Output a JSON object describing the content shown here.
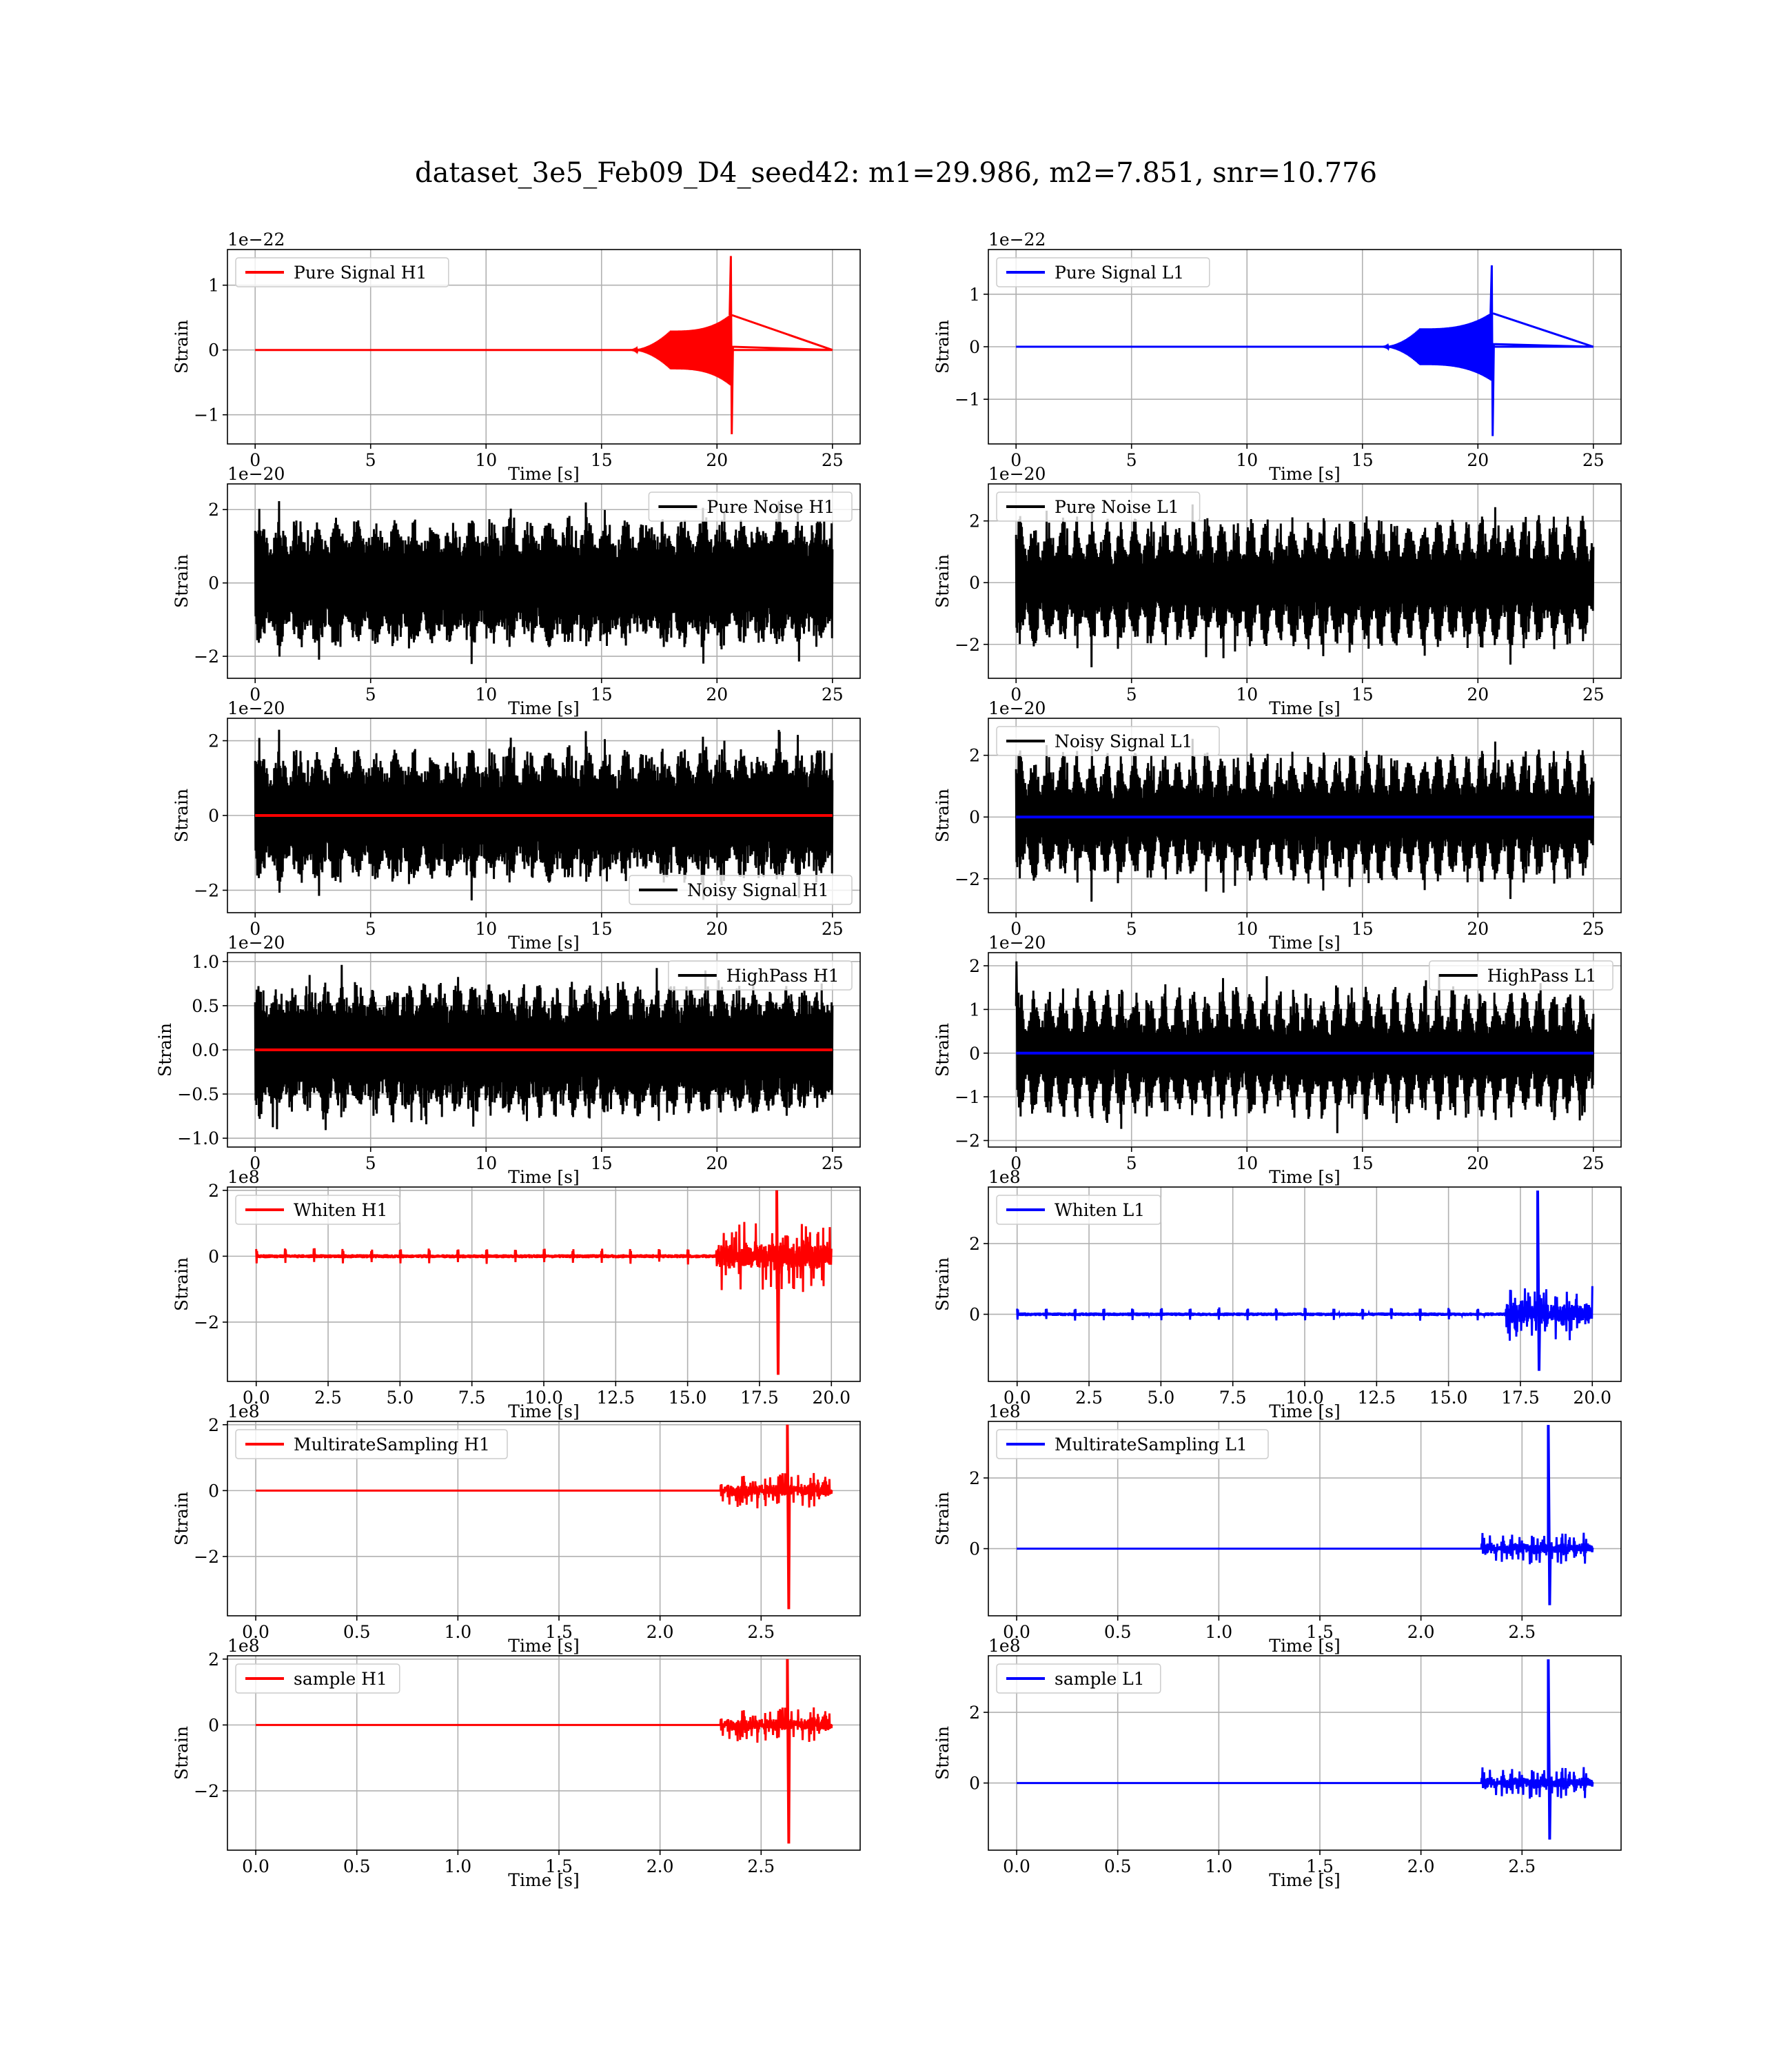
{
  "figure": {
    "title": "dataset_3e5_Feb09_D4_seed42: m1=29.986, m2=7.851, snr=10.776"
  },
  "chart_data": [
    {
      "id": "pure-signal-h1",
      "type": "line",
      "legend": "Pure Signal H1",
      "legend_loc": "upper-left",
      "ylabel": "Strain",
      "xlabel": "Time [s]",
      "exponent": "1e−22",
      "xlim": [
        -1.2,
        26.2
      ],
      "ylim": [
        -1.45,
        1.55
      ],
      "xticks": [
        0,
        5,
        10,
        15,
        20,
        25
      ],
      "xtick_labels": [
        "0",
        "5",
        "10",
        "15",
        "20",
        "25"
      ],
      "yticks": [
        -1,
        0,
        1
      ],
      "ytick_labels": [
        "−1",
        "0",
        "1"
      ],
      "series": [
        {
          "name": "Pure Signal H1",
          "color": "#ff0000",
          "shape": "chirp",
          "x_range": [
            0,
            25
          ],
          "values": {
            "rise_start": 16.2,
            "plateau_start": 18.0,
            "merger": 20.6,
            "plateau_amp": 0.3,
            "pre_peak_amp": 0.55,
            "peak_max": 1.45,
            "peak_min": -1.3
          }
        }
      ]
    },
    {
      "id": "pure-signal-l1",
      "type": "line",
      "legend": "Pure Signal L1",
      "legend_loc": "upper-left",
      "ylabel": "Strain",
      "xlabel": "Time [s]",
      "exponent": "1e−22",
      "xlim": [
        -1.2,
        26.2
      ],
      "ylim": [
        -1.85,
        1.85
      ],
      "xticks": [
        0,
        5,
        10,
        15,
        20,
        25
      ],
      "xtick_labels": [
        "0",
        "5",
        "10",
        "15",
        "20",
        "25"
      ],
      "yticks": [
        -1,
        0,
        1
      ],
      "ytick_labels": [
        "−1",
        "0",
        "1"
      ],
      "series": [
        {
          "name": "Pure Signal L1",
          "color": "#0000ff",
          "shape": "chirp",
          "x_range": [
            0,
            25
          ],
          "values": {
            "rise_start": 15.8,
            "plateau_start": 17.5,
            "merger": 20.6,
            "plateau_amp": 0.35,
            "pre_peak_amp": 0.65,
            "peak_max": 1.55,
            "peak_min": -1.7
          }
        }
      ]
    },
    {
      "id": "pure-noise-h1",
      "type": "line",
      "legend": "Pure Noise H1",
      "legend_loc": "upper-right",
      "ylabel": "Strain",
      "xlabel": "Time [s]",
      "exponent": "1e−20",
      "xlim": [
        -1.2,
        26.2
      ],
      "ylim": [
        -2.6,
        2.7
      ],
      "xticks": [
        0,
        5,
        10,
        15,
        20,
        25
      ],
      "xtick_labels": [
        "0",
        "5",
        "10",
        "15",
        "20",
        "25"
      ],
      "yticks": [
        -2,
        0,
        2
      ],
      "ytick_labels": [
        "−2",
        "0",
        "2"
      ],
      "series": [
        {
          "name": "Pure Noise H1",
          "color": "#000000",
          "shape": "noise",
          "x_range": [
            0,
            25
          ],
          "values": {
            "amp": 1.8,
            "seed": 11,
            "modulation": 0.35,
            "mod_freq": 1.2
          }
        }
      ]
    },
    {
      "id": "pure-noise-l1",
      "type": "line",
      "legend": "Pure Noise L1",
      "legend_loc": "upper-left",
      "ylabel": "Strain",
      "xlabel": "Time [s]",
      "exponent": "1e−20",
      "xlim": [
        -1.2,
        26.2
      ],
      "ylim": [
        -3.1,
        3.2
      ],
      "xticks": [
        0,
        5,
        10,
        15,
        20,
        25
      ],
      "xtick_labels": [
        "0",
        "5",
        "10",
        "15",
        "20",
        "25"
      ],
      "yticks": [
        -2,
        0,
        2
      ],
      "ytick_labels": [
        "−2",
        "0",
        "2"
      ],
      "series": [
        {
          "name": "Pure Noise L1",
          "color": "#000000",
          "shape": "noise",
          "x_range": [
            0,
            25
          ],
          "values": {
            "amp": 2.2,
            "seed": 23,
            "modulation": 0.55,
            "mod_freq": 1.6
          }
        }
      ]
    },
    {
      "id": "noisy-signal-h1",
      "type": "line",
      "legend": "Noisy Signal H1",
      "legend_loc": "lower-right",
      "ylabel": "Strain",
      "xlabel": "Time [s]",
      "exponent": "1e−20",
      "xlim": [
        -1.2,
        26.2
      ],
      "ylim": [
        -2.6,
        2.6
      ],
      "xticks": [
        0,
        5,
        10,
        15,
        20,
        25
      ],
      "xtick_labels": [
        "0",
        "5",
        "10",
        "15",
        "20",
        "25"
      ],
      "yticks": [
        -2,
        0,
        2
      ],
      "ytick_labels": [
        "−2",
        "0",
        "2"
      ],
      "series": [
        {
          "name": "Noisy Signal H1",
          "color": "#000000",
          "shape": "noise",
          "x_range": [
            0,
            25
          ],
          "values": {
            "amp": 1.85,
            "seed": 11,
            "modulation": 0.35,
            "mod_freq": 1.2
          }
        },
        {
          "name": "",
          "color": "#ff0000",
          "shape": "flat",
          "x_range": [
            0,
            25
          ],
          "values": {
            "level": 0
          }
        }
      ]
    },
    {
      "id": "noisy-signal-l1",
      "type": "line",
      "legend": "Noisy Signal L1",
      "legend_loc": "upper-left",
      "ylabel": "Strain",
      "xlabel": "Time [s]",
      "exponent": "1e−20",
      "xlim": [
        -1.2,
        26.2
      ],
      "ylim": [
        -3.1,
        3.2
      ],
      "xticks": [
        0,
        5,
        10,
        15,
        20,
        25
      ],
      "xtick_labels": [
        "0",
        "5",
        "10",
        "15",
        "20",
        "25"
      ],
      "yticks": [
        -2,
        0,
        2
      ],
      "ytick_labels": [
        "−2",
        "0",
        "2"
      ],
      "series": [
        {
          "name": "Noisy Signal L1",
          "color": "#000000",
          "shape": "noise",
          "x_range": [
            0,
            25
          ],
          "values": {
            "amp": 2.2,
            "seed": 23,
            "modulation": 0.55,
            "mod_freq": 1.6
          }
        },
        {
          "name": "",
          "color": "#0000ff",
          "shape": "flat",
          "x_range": [
            0,
            25
          ],
          "values": {
            "level": 0
          }
        }
      ]
    },
    {
      "id": "highpass-h1",
      "type": "line",
      "legend": "HighPass H1",
      "legend_loc": "upper-right",
      "ylabel": "Strain",
      "xlabel": "Time [s]",
      "exponent": "1e−20",
      "xlim": [
        -1.2,
        26.2
      ],
      "ylim": [
        -1.1,
        1.1
      ],
      "xticks": [
        0,
        5,
        10,
        15,
        20,
        25
      ],
      "xtick_labels": [
        "0",
        "5",
        "10",
        "15",
        "20",
        "25"
      ],
      "yticks": [
        -1.0,
        -0.5,
        0.0,
        0.5,
        1.0
      ],
      "ytick_labels": [
        "−1.0",
        "−0.5",
        "0.0",
        "0.5",
        "1.0"
      ],
      "series": [
        {
          "name": "HighPass H1",
          "color": "#000000",
          "shape": "noise",
          "x_range": [
            0,
            25
          ],
          "values": {
            "amp": 0.78,
            "seed": 37,
            "modulation": 0.35,
            "mod_freq": 1.4
          }
        },
        {
          "name": "",
          "color": "#ff0000",
          "shape": "flat",
          "x_range": [
            0,
            25
          ],
          "values": {
            "level": 0
          }
        }
      ]
    },
    {
      "id": "highpass-l1",
      "type": "line",
      "legend": "HighPass L1",
      "legend_loc": "upper-right",
      "ylabel": "Strain",
      "xlabel": "Time [s]",
      "exponent": "1e−20",
      "xlim": [
        -1.2,
        26.2
      ],
      "ylim": [
        -2.15,
        2.3
      ],
      "xticks": [
        0,
        5,
        10,
        15,
        20,
        25
      ],
      "xtick_labels": [
        "0",
        "5",
        "10",
        "15",
        "20",
        "25"
      ],
      "yticks": [
        -2,
        -1,
        0,
        1,
        2
      ],
      "ytick_labels": [
        "−2",
        "−1",
        "0",
        "1",
        "2"
      ],
      "series": [
        {
          "name": "HighPass L1",
          "color": "#000000",
          "shape": "noise",
          "x_range": [
            0,
            25
          ],
          "values": {
            "amp": 1.55,
            "seed": 41,
            "modulation": 0.6,
            "mod_freq": 1.6,
            "start_spike": 2.1
          }
        },
        {
          "name": "",
          "color": "#0000ff",
          "shape": "flat",
          "x_range": [
            0,
            25
          ],
          "values": {
            "level": 0
          }
        }
      ]
    },
    {
      "id": "whiten-h1",
      "type": "line",
      "legend": "Whiten H1",
      "legend_loc": "upper-left",
      "ylabel": "Strain",
      "xlabel": "Time [s]",
      "exponent": "1e8",
      "xlim": [
        -1.0,
        21.0
      ],
      "ylim": [
        -3.8,
        2.1
      ],
      "xticks": [
        0,
        2.5,
        5,
        7.5,
        10,
        12.5,
        15,
        17.5,
        20
      ],
      "xtick_labels": [
        "0.0",
        "2.5",
        "5.0",
        "7.5",
        "10.0",
        "12.5",
        "15.0",
        "17.5",
        "20.0"
      ],
      "yticks": [
        -2,
        0,
        2
      ],
      "ytick_labels": [
        "−2",
        "0",
        "2"
      ],
      "series": [
        {
          "name": "Whiten H1",
          "color": "#ff0000",
          "shape": "bursts",
          "x_range": [
            0,
            20
          ],
          "values": {
            "base_amp": 0.06,
            "burst_amp": 0.2,
            "spacing": 1.0,
            "loud_start": 16.0,
            "loud_amp": 0.55,
            "peak_x": 18.1,
            "peak_max": 2.0,
            "peak_min": -3.6,
            "seed": 5
          }
        }
      ]
    },
    {
      "id": "whiten-l1",
      "type": "line",
      "legend": "Whiten L1",
      "legend_loc": "upper-left",
      "ylabel": "Strain",
      "xlabel": "Time [s]",
      "exponent": "1e8",
      "xlim": [
        -1.0,
        21.0
      ],
      "ylim": [
        -1.9,
        3.6
      ],
      "xticks": [
        0,
        2.5,
        5,
        7.5,
        10,
        12.5,
        15,
        17.5,
        20
      ],
      "xtick_labels": [
        "0.0",
        "2.5",
        "5.0",
        "7.5",
        "10.0",
        "12.5",
        "15.0",
        "17.5",
        "20.0"
      ],
      "yticks": [
        0,
        2
      ],
      "ytick_labels": [
        "0",
        "2"
      ],
      "series": [
        {
          "name": "Whiten L1",
          "color": "#0000ff",
          "shape": "bursts",
          "x_range": [
            0,
            20
          ],
          "values": {
            "base_amp": 0.05,
            "burst_amp": 0.15,
            "spacing": 1.0,
            "loud_start": 17.0,
            "loud_amp": 0.4,
            "peak_x": 18.1,
            "peak_max": 3.5,
            "peak_min": -1.6,
            "seed": 9
          }
        }
      ]
    },
    {
      "id": "multirate-h1",
      "type": "line",
      "legend": "MultirateSampling H1",
      "legend_loc": "upper-left",
      "ylabel": "Strain",
      "xlabel": "Time [s]",
      "exponent": "1e8",
      "xlim": [
        -0.14,
        2.99
      ],
      "ylim": [
        -3.8,
        2.1
      ],
      "xticks": [
        0,
        0.5,
        1.0,
        1.5,
        2.0,
        2.5
      ],
      "xtick_labels": [
        "0.0",
        "0.5",
        "1.0",
        "1.5",
        "2.0",
        "2.5"
      ],
      "yticks": [
        -2,
        0,
        2
      ],
      "ytick_labels": [
        "−2",
        "0",
        "2"
      ],
      "series": [
        {
          "name": "MultirateSampling H1",
          "color": "#ff0000",
          "shape": "bursts",
          "x_range": [
            0,
            2.85
          ],
          "values": {
            "base_amp": 0.0,
            "burst_amp": 0.0,
            "spacing": 1.0,
            "loud_start": 2.3,
            "loud_amp": 0.3,
            "peak_x": 2.63,
            "peak_max": 2.0,
            "peak_min": -3.6,
            "seed": 13
          }
        }
      ]
    },
    {
      "id": "multirate-l1",
      "type": "line",
      "legend": "MultirateSampling L1",
      "legend_loc": "upper-left",
      "ylabel": "Strain",
      "xlabel": "Time [s]",
      "exponent": "1e8",
      "xlim": [
        -0.14,
        2.99
      ],
      "ylim": [
        -1.9,
        3.6
      ],
      "xticks": [
        0,
        0.5,
        1.0,
        1.5,
        2.0,
        2.5
      ],
      "xtick_labels": [
        "0.0",
        "0.5",
        "1.0",
        "1.5",
        "2.0",
        "2.5"
      ],
      "yticks": [
        0,
        2
      ],
      "ytick_labels": [
        "0",
        "2"
      ],
      "series": [
        {
          "name": "MultirateSampling L1",
          "color": "#0000ff",
          "shape": "bursts",
          "x_range": [
            0,
            2.85
          ],
          "values": {
            "base_amp": 0.0,
            "burst_amp": 0.0,
            "spacing": 1.0,
            "loud_start": 2.3,
            "loud_amp": 0.25,
            "peak_x": 2.63,
            "peak_max": 3.5,
            "peak_min": -1.6,
            "seed": 17
          }
        }
      ]
    },
    {
      "id": "sample-h1",
      "type": "line",
      "legend": "sample H1",
      "legend_loc": "upper-left",
      "ylabel": "Strain",
      "xlabel": "Time [s]",
      "exponent": "1e8",
      "xlim": [
        -0.14,
        2.99
      ],
      "ylim": [
        -3.8,
        2.1
      ],
      "xticks": [
        0,
        0.5,
        1.0,
        1.5,
        2.0,
        2.5
      ],
      "xtick_labels": [
        "0.0",
        "0.5",
        "1.0",
        "1.5",
        "2.0",
        "2.5"
      ],
      "yticks": [
        -2,
        0,
        2
      ],
      "ytick_labels": [
        "−2",
        "0",
        "2"
      ],
      "series": [
        {
          "name": "sample H1",
          "color": "#ff0000",
          "shape": "bursts",
          "x_range": [
            0,
            2.85
          ],
          "values": {
            "base_amp": 0.0,
            "burst_amp": 0.0,
            "spacing": 1.0,
            "loud_start": 2.3,
            "loud_amp": 0.3,
            "peak_x": 2.63,
            "peak_max": 2.0,
            "peak_min": -3.6,
            "seed": 13
          }
        }
      ]
    },
    {
      "id": "sample-l1",
      "type": "line",
      "legend": "sample L1",
      "legend_loc": "upper-left",
      "ylabel": "Strain",
      "xlabel": "Time [s]",
      "exponent": "1e8",
      "xlim": [
        -0.14,
        2.99
      ],
      "ylim": [
        -1.9,
        3.6
      ],
      "xticks": [
        0,
        0.5,
        1.0,
        1.5,
        2.0,
        2.5
      ],
      "xtick_labels": [
        "0.0",
        "0.5",
        "1.0",
        "1.5",
        "2.0",
        "2.5"
      ],
      "yticks": [
        0,
        2
      ],
      "ytick_labels": [
        "0",
        "2"
      ],
      "series": [
        {
          "name": "sample L1",
          "color": "#0000ff",
          "shape": "bursts",
          "x_range": [
            0,
            2.85
          ],
          "values": {
            "base_amp": 0.0,
            "burst_amp": 0.0,
            "spacing": 1.0,
            "loud_start": 2.3,
            "loud_amp": 0.25,
            "peak_x": 2.63,
            "peak_max": 3.5,
            "peak_min": -1.6,
            "seed": 17
          }
        }
      ]
    }
  ]
}
